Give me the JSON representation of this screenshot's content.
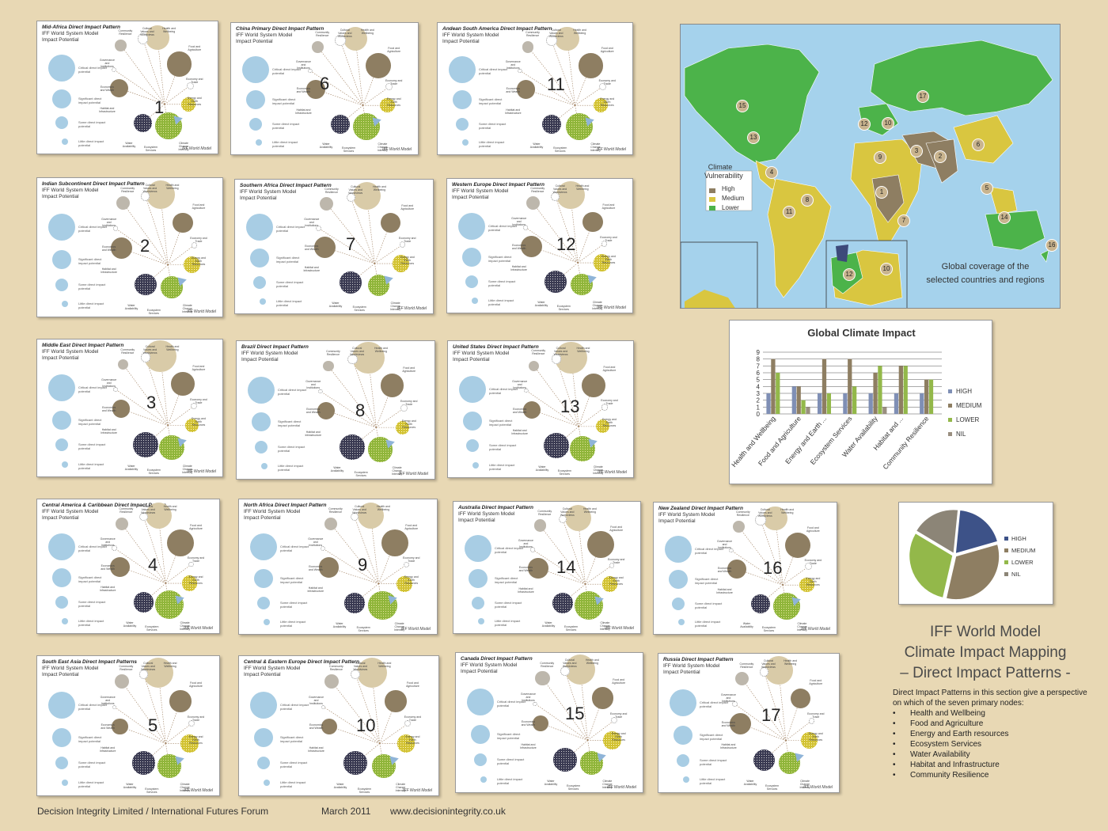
{
  "panels": [
    {
      "num": "1",
      "title": "Mid-Africa Direct Impact Pattern",
      "show_sub": false
    },
    {
      "num": "2",
      "title": "Indian Subcontinent Direct Impact Pattern",
      "show_sub": true
    },
    {
      "num": "3",
      "title": "Middle East Direct Impact Pattern",
      "show_sub": true
    },
    {
      "num": "4",
      "title": "Central America & Caribbean Direct Impact Pattern",
      "show_sub": true
    },
    {
      "num": "5",
      "title": "South East Asia Direct Impact Patterns",
      "show_sub": true
    },
    {
      "num": "6",
      "title": "China Primary Direct Impact Pattern",
      "show_sub": true
    },
    {
      "num": "7",
      "title": "Southern Africa Direct Impact Pattern",
      "show_sub": true
    },
    {
      "num": "8",
      "title": "Brazil Direct Impact Pattern",
      "show_sub": true
    },
    {
      "num": "9",
      "title": "North Africa Direct Impact Pattern",
      "show_sub": true
    },
    {
      "num": "10",
      "title": "Central & Eastern Europe Direct Impact Pattern",
      "show_sub": true
    },
    {
      "num": "11",
      "title": "Andean South America Direct Impact Pattern",
      "show_sub": true
    },
    {
      "num": "12",
      "title": "Western Europe  Direct Impact Pattern",
      "show_sub": true
    },
    {
      "num": "13",
      "title": "United States Direct Impact Pattern",
      "show_sub": true
    },
    {
      "num": "14",
      "title": "Australia Direct Impact Pattern",
      "show_sub": true
    },
    {
      "num": "15",
      "title": "Canada Direct Impact Pattern",
      "show_sub": true
    },
    {
      "num": "16",
      "title": "New Zealand Direct Impact Pattern",
      "show_sub": true
    },
    {
      "num": "17",
      "title": "Russia Direct Impact Pattern",
      "show_sub": true
    }
  ],
  "panel_common": {
    "subtitle_line1": "IFF World System Model",
    "subtitle_line2": "Impact Potential",
    "logo": "IFF World Model",
    "legend": [
      "Critical direct impact potential",
      "Significant direct impact potential",
      "Some direct impact potential",
      "Little direct impact potential"
    ],
    "node_labels": [
      "Community Resilience",
      "Cultural Values and Worldviews",
      "Health and Wellbeing",
      "Food and Agriculture",
      "Economy and Trade",
      "Energy and Earth Resources",
      "Climate Change Intensity",
      "Ecosystem Services",
      "Water Availability",
      "Habitat and Infrastructure",
      "Economics and Wealth",
      "Governance and Institutions"
    ]
  },
  "map": {
    "legend_title": "Climate Vulnerability",
    "legend_items": [
      {
        "label": "High",
        "color": "#8e7e62"
      },
      {
        "label": "Medium",
        "color": "#d9c640"
      },
      {
        "label": "Lower",
        "color": "#4cb34a"
      }
    ],
    "coverage_line1": "Global coverage of the",
    "coverage_line2": "selected countries and regions",
    "region_numbers": [
      "15",
      "17",
      "13",
      "12",
      "10",
      "3",
      "2",
      "6",
      "9",
      "4",
      "1",
      "5",
      "8",
      "11",
      "7",
      "14",
      "16",
      "12",
      "10"
    ]
  },
  "chart_data": [
    {
      "type": "bar",
      "title": "Global Climate Impact",
      "categories": [
        "Health and Wellbeing",
        "Food and Agriculture",
        "Energy and Earth ...",
        "Ecosystem Services",
        "Water Availability",
        "Habitat and ...",
        "Community Resilience"
      ],
      "series": [
        {
          "name": "HIGH",
          "values": [
            3,
            4,
            3,
            3,
            3,
            3,
            3
          ],
          "color": "#7f8fb5"
        },
        {
          "name": "MEDIUM",
          "values": [
            8,
            4,
            8,
            8,
            6,
            7,
            5
          ],
          "color": "#8e7e62"
        },
        {
          "name": "LOWER",
          "values": [
            6,
            2,
            3,
            4,
            7,
            7,
            5
          ],
          "color": "#93b84a"
        },
        {
          "name": "NIL",
          "values": [
            0,
            1,
            0,
            0,
            1,
            0,
            0
          ],
          "color": "#9a8f80"
        }
      ],
      "ylim": [
        0,
        9
      ],
      "yticks": [
        "0",
        "1",
        "2",
        "3",
        "4",
        "5",
        "6",
        "7",
        "8",
        "9"
      ],
      "grid": true,
      "legend": "right"
    },
    {
      "type": "pie",
      "labels": [
        "HIGH",
        "MEDIUM",
        "LOWER",
        "NIL"
      ],
      "values": [
        19,
        33,
        30,
        18
      ],
      "colors": [
        "#3d5288",
        "#8e7e62",
        "#93b84a",
        "#8c8577"
      ],
      "legend": "right"
    }
  ],
  "title": {
    "line1": "IFF World Model",
    "line2": "Climate Impact Mapping",
    "line3": "– Direct Impact Patterns -"
  },
  "description": {
    "intro": "Direct Impact Patterns in this section give a perspective on which of the seven primary nodes:",
    "items": [
      "Health and Wellbeing",
      "Food and Agriculture",
      "Energy and Earth resources",
      "Ecosystem Services",
      "Water Availability",
      "Habitat and Infrastructure",
      "Community Resilience"
    ]
  },
  "footer": {
    "org": "Decision Integrity Limited / International Futures Forum",
    "date": "March 2011",
    "url": "www.decisionintegrity.co.uk"
  }
}
